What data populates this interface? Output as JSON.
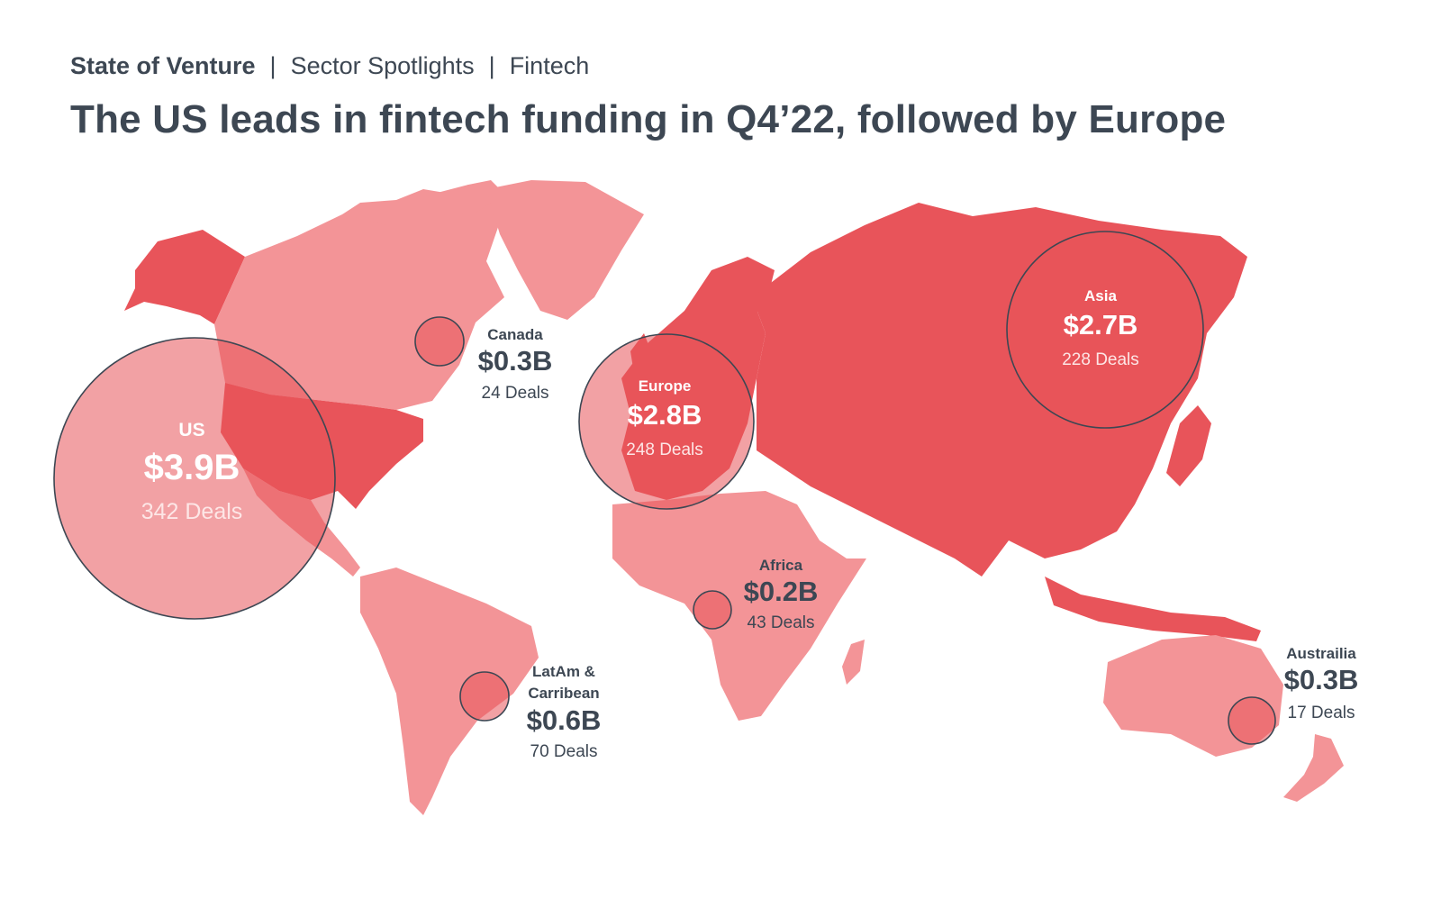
{
  "breadcrumb": {
    "section": "State of Venture",
    "subsection": "Sector Spotlights",
    "topic": "Fintech",
    "separator": "|"
  },
  "title": "The US leads in fintech funding in Q4’22, followed by Europe",
  "colors": {
    "text": "#3d4753",
    "land_dark": "#e8545a",
    "land_light": "#f39497",
    "bubble": "#e8545a"
  },
  "regions": [
    {
      "id": "us",
      "name": "US",
      "amount": "$3.9B",
      "deals": "342 Deals",
      "funding_billion": 3.9,
      "deal_count": 342
    },
    {
      "id": "canada",
      "name": "Canada",
      "amount": "$0.3B",
      "deals": "24 Deals",
      "funding_billion": 0.3,
      "deal_count": 24
    },
    {
      "id": "europe",
      "name": "Europe",
      "amount": "$2.8B",
      "deals": "248 Deals",
      "funding_billion": 2.8,
      "deal_count": 248
    },
    {
      "id": "asia",
      "name": "Asia",
      "amount": "$2.7B",
      "deals": "228 Deals",
      "funding_billion": 2.7,
      "deal_count": 228
    },
    {
      "id": "africa",
      "name": "Africa",
      "amount": "$0.2B",
      "deals": "43 Deals",
      "funding_billion": 0.2,
      "deal_count": 43
    },
    {
      "id": "latam",
      "name_line1": "LatAm &",
      "name_line2": "Carribean",
      "amount": "$0.6B",
      "deals": "70 Deals",
      "funding_billion": 0.6,
      "deal_count": 70
    },
    {
      "id": "australia",
      "name": "Austrailia",
      "amount": "$0.3B",
      "deals": "17 Deals",
      "funding_billion": 0.3,
      "deal_count": 17
    }
  ]
}
